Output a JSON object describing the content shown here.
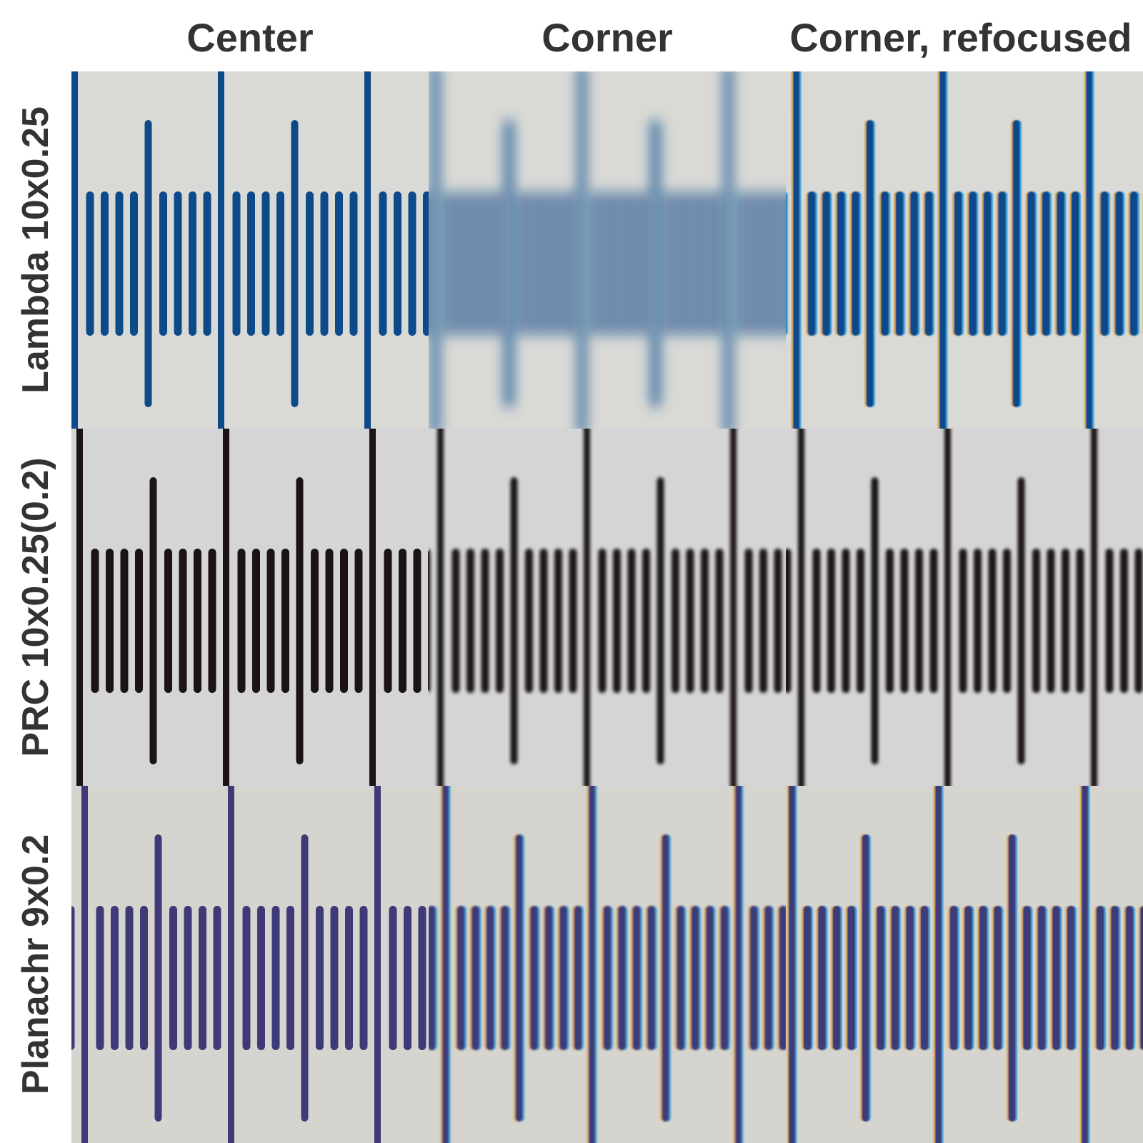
{
  "columns": [
    "Center",
    "Corner",
    "Corner, refocused"
  ],
  "rows": [
    {
      "label": "Lambda 10x0.25",
      "ink": "#0d4a8a",
      "bg": "#d9d9d6"
    },
    {
      "label": "PRC 10x0.25(0.2)",
      "ink": "#1c1317",
      "bg": "#d5d4d6"
    },
    {
      "label": "Planachr 9x0.2",
      "ink": "#3e3a78",
      "bg": "#d6d4cf"
    }
  ],
  "cells": [
    [
      {
        "name": "lambda-center",
        "blur": 0,
        "fringe": false
      },
      {
        "name": "lambda-corner",
        "blur": 9,
        "fringe": false
      },
      {
        "name": "lambda-corner-refocused",
        "blur": 0.8,
        "fringe": true
      }
    ],
    [
      {
        "name": "prc-center",
        "blur": 0,
        "fringe": false
      },
      {
        "name": "prc-corner",
        "blur": 2.5,
        "fringe": false
      },
      {
        "name": "prc-corner-refocused",
        "blur": 2.2,
        "fringe": false
      }
    ],
    [
      {
        "name": "planachr-center",
        "blur": 0,
        "fringe": false
      },
      {
        "name": "planachr-corner",
        "blur": 1.2,
        "fringe": true
      },
      {
        "name": "planachr-corner-refocused",
        "blur": 0.8,
        "fringe": true
      }
    ]
  ]
}
